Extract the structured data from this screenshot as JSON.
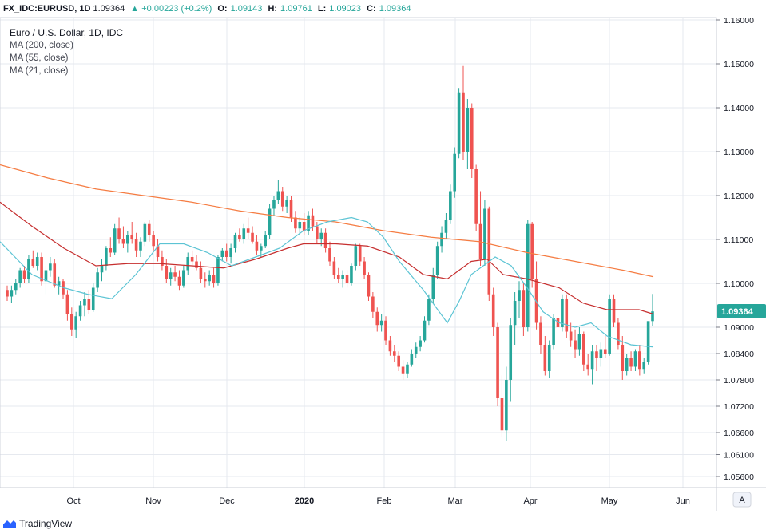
{
  "header": {
    "symbol": "FX_IDC:EURUSD, 1D",
    "last": "1.09364",
    "change": "▲ +0.00223 (+0.2%)",
    "o_label": "O:",
    "o": "1.09143",
    "h_label": "H:",
    "h": "1.09761",
    "l_label": "L:",
    "l": "1.09023",
    "c_label": "C:",
    "c": "1.09364"
  },
  "legend": {
    "title": "Euro / U.S. Dollar, 1D, IDC",
    "ma1": "MA (200, close)",
    "ma2": "MA (55, close)",
    "ma3": "MA (21, close)"
  },
  "price_tag": "1.09364",
  "scale_button": "A",
  "brand": "TradingView",
  "colors": {
    "up": "#26a69a",
    "down": "#ef5350",
    "ma200": "#f57c42",
    "ma55": "#c62f2f",
    "ma21": "#5cc4d4",
    "grid": "#e6e9ef"
  },
  "chart_data": {
    "type": "candlestick",
    "title": "Euro / U.S. Dollar, 1D, IDC",
    "y_ticks": [
      "1.16000",
      "1.15000",
      "1.14000",
      "1.13000",
      "1.12000",
      "1.11000",
      "1.10000",
      "1.09000",
      "1.08400",
      "1.07800",
      "1.07200",
      "1.06600",
      "1.06100",
      "1.05600"
    ],
    "x_ticks": [
      "Oct",
      "Nov",
      "Dec",
      "2020",
      "Feb",
      "Mar",
      "Apr",
      "May",
      "Jun"
    ],
    "last_price": 1.09364,
    "series": [
      {
        "name": "MA (200, close)",
        "points": [
          [
            0,
            1.127
          ],
          [
            60,
            1.124
          ],
          [
            120,
            1.1215
          ],
          [
            180,
            1.12
          ],
          [
            240,
            1.1185
          ],
          [
            300,
            1.1165
          ],
          [
            360,
            1.115
          ],
          [
            420,
            1.114
          ],
          [
            480,
            1.112
          ],
          [
            540,
            1.1105
          ],
          [
            600,
            1.1095
          ],
          [
            660,
            1.107
          ],
          [
            720,
            1.105
          ],
          [
            780,
            1.103
          ],
          [
            818,
            1.1015
          ]
        ]
      },
      {
        "name": "MA (55, close)",
        "points": [
          [
            0,
            1.1185
          ],
          [
            40,
            1.113
          ],
          [
            80,
            1.108
          ],
          [
            120,
            1.104
          ],
          [
            160,
            1.1045
          ],
          [
            200,
            1.1045
          ],
          [
            240,
            1.104
          ],
          [
            280,
            1.1035
          ],
          [
            320,
            1.1055
          ],
          [
            360,
            1.108
          ],
          [
            380,
            1.109
          ],
          [
            420,
            1.109
          ],
          [
            460,
            1.1085
          ],
          [
            500,
            1.106
          ],
          [
            530,
            1.102
          ],
          [
            560,
            1.101
          ],
          [
            590,
            1.105
          ],
          [
            610,
            1.1055
          ],
          [
            630,
            1.102
          ],
          [
            660,
            1.101
          ],
          [
            700,
            1.099
          ],
          [
            730,
            1.0955
          ],
          [
            760,
            1.094
          ],
          [
            800,
            1.094
          ],
          [
            818,
            1.093
          ]
        ]
      },
      {
        "name": "MA (21, close)",
        "points": [
          [
            0,
            1.1095
          ],
          [
            40,
            1.102
          ],
          [
            80,
            1.099
          ],
          [
            110,
            1.0975
          ],
          [
            140,
            1.0965
          ],
          [
            170,
            1.102
          ],
          [
            200,
            1.109
          ],
          [
            230,
            1.109
          ],
          [
            260,
            1.107
          ],
          [
            290,
            1.104
          ],
          [
            320,
            1.106
          ],
          [
            350,
            1.108
          ],
          [
            380,
            1.112
          ],
          [
            410,
            1.114
          ],
          [
            440,
            1.115
          ],
          [
            460,
            1.114
          ],
          [
            480,
            1.1105
          ],
          [
            500,
            1.105
          ],
          [
            530,
            1.0985
          ],
          [
            560,
            1.091
          ],
          [
            575,
            1.096
          ],
          [
            590,
            1.102
          ],
          [
            620,
            1.106
          ],
          [
            640,
            1.104
          ],
          [
            660,
            1.099
          ],
          [
            680,
            1.0935
          ],
          [
            700,
            1.091
          ],
          [
            720,
            1.09
          ],
          [
            740,
            1.091
          ],
          [
            760,
            1.088
          ],
          [
            790,
            1.086
          ],
          [
            818,
            1.0855
          ]
        ]
      }
    ],
    "candles": [
      [
        1.0985,
        1.0995,
        1.096,
        1.097
      ],
      [
        1.097,
        1.0995,
        1.0955,
        1.0985
      ],
      [
        1.0985,
        1.101,
        1.0975,
        1.1
      ],
      [
        1.1,
        1.1035,
        1.099,
        1.103
      ],
      [
        1.103,
        1.104,
        1.1,
        1.101
      ],
      [
        1.101,
        1.1065,
        1.1,
        1.1055
      ],
      [
        1.1055,
        1.1075,
        1.1035,
        1.104
      ],
      [
        1.104,
        1.107,
        1.103,
        1.106
      ],
      [
        1.106,
        1.107,
        1.0995,
        1.1005
      ],
      [
        1.1005,
        1.104,
        1.0975,
        1.103
      ],
      [
        1.103,
        1.106,
        1.1015,
        1.1045
      ],
      [
        1.1045,
        1.1055,
        1.099,
        1.0995
      ],
      [
        1.0995,
        1.1015,
        1.0975,
        1.1005
      ],
      [
        1.1005,
        1.101,
        1.0965,
        1.0975
      ],
      [
        1.0975,
        1.0985,
        1.0915,
        1.093
      ],
      [
        1.093,
        1.0945,
        1.088,
        1.0895
      ],
      [
        1.0895,
        1.0935,
        1.0875,
        1.0925
      ],
      [
        1.0925,
        1.096,
        1.0915,
        1.095
      ],
      [
        1.095,
        1.098,
        1.0925,
        1.0965
      ],
      [
        1.0965,
        1.0985,
        1.093,
        1.094
      ],
      [
        1.094,
        1.1,
        1.0935,
        1.099
      ],
      [
        1.099,
        1.1035,
        1.098,
        1.1025
      ],
      [
        1.1025,
        1.1055,
        1.1005,
        1.104
      ],
      [
        1.104,
        1.1085,
        1.103,
        1.108
      ],
      [
        1.108,
        1.1105,
        1.106,
        1.107
      ],
      [
        1.107,
        1.1135,
        1.1065,
        1.1125
      ],
      [
        1.1125,
        1.115,
        1.109,
        1.11
      ],
      [
        1.11,
        1.113,
        1.108,
        1.109
      ],
      [
        1.109,
        1.112,
        1.107,
        1.111
      ],
      [
        1.111,
        1.114,
        1.109,
        1.11
      ],
      [
        1.11,
        1.1115,
        1.106,
        1.1075
      ],
      [
        1.1075,
        1.1105,
        1.106,
        1.1095
      ],
      [
        1.1095,
        1.114,
        1.1085,
        1.1135
      ],
      [
        1.1135,
        1.1145,
        1.1095,
        1.111
      ],
      [
        1.111,
        1.112,
        1.1075,
        1.1085
      ],
      [
        1.1085,
        1.11,
        1.105,
        1.106
      ],
      [
        1.106,
        1.1075,
        1.103,
        1.104
      ],
      [
        1.104,
        1.1055,
        1.1,
        1.101
      ],
      [
        1.101,
        1.1035,
        1.0995,
        1.1025
      ],
      [
        1.1025,
        1.104,
        1.1005,
        1.1015
      ],
      [
        1.1015,
        1.103,
        1.0985,
        1.0995
      ],
      [
        1.0995,
        1.104,
        1.099,
        1.103
      ],
      [
        1.103,
        1.107,
        1.102,
        1.106
      ],
      [
        1.106,
        1.1075,
        1.104,
        1.105
      ],
      [
        1.105,
        1.1065,
        1.103,
        1.1035
      ],
      [
        1.1035,
        1.105,
        1.1,
        1.101
      ],
      [
        1.101,
        1.1025,
        1.099,
        1.1005
      ],
      [
        1.1005,
        1.103,
        1.0995,
        1.102
      ],
      [
        1.102,
        1.1035,
        1.099,
        1.1
      ],
      [
        1.1,
        1.1065,
        1.0995,
        1.106
      ],
      [
        1.106,
        1.108,
        1.105,
        1.1075
      ],
      [
        1.1075,
        1.109,
        1.105,
        1.106
      ],
      [
        1.106,
        1.109,
        1.1045,
        1.108
      ],
      [
        1.108,
        1.1115,
        1.107,
        1.111
      ],
      [
        1.111,
        1.1125,
        1.1095,
        1.11
      ],
      [
        1.11,
        1.1135,
        1.109,
        1.1125
      ],
      [
        1.1125,
        1.115,
        1.11,
        1.1115
      ],
      [
        1.1115,
        1.113,
        1.109,
        1.1095
      ],
      [
        1.1095,
        1.111,
        1.1065,
        1.1075
      ],
      [
        1.1075,
        1.109,
        1.106,
        1.1085
      ],
      [
        1.1085,
        1.112,
        1.108,
        1.111
      ],
      [
        1.111,
        1.118,
        1.11,
        1.117
      ],
      [
        1.117,
        1.12,
        1.1155,
        1.119
      ],
      [
        1.119,
        1.1235,
        1.118,
        1.121
      ],
      [
        1.121,
        1.122,
        1.1165,
        1.1175
      ],
      [
        1.1175,
        1.12,
        1.116,
        1.119
      ],
      [
        1.119,
        1.12,
        1.114,
        1.115
      ],
      [
        1.115,
        1.1165,
        1.1115,
        1.1125
      ],
      [
        1.1125,
        1.115,
        1.111,
        1.114
      ],
      [
        1.114,
        1.116,
        1.111,
        1.112
      ],
      [
        1.112,
        1.1165,
        1.111,
        1.1155
      ],
      [
        1.1155,
        1.117,
        1.112,
        1.113
      ],
      [
        1.113,
        1.114,
        1.109,
        1.11
      ],
      [
        1.11,
        1.1125,
        1.1085,
        1.1115
      ],
      [
        1.1115,
        1.1125,
        1.107,
        1.108
      ],
      [
        1.108,
        1.1095,
        1.104,
        1.105
      ],
      [
        1.105,
        1.106,
        1.101,
        1.102
      ],
      [
        1.102,
        1.1035,
        1.1,
        1.101
      ],
      [
        1.101,
        1.103,
        1.099,
        1.102
      ],
      [
        1.102,
        1.103,
        1.099,
        1.1
      ],
      [
        1.1,
        1.1045,
        1.0995,
        1.104
      ],
      [
        1.104,
        1.109,
        1.103,
        1.1085
      ],
      [
        1.1085,
        1.109,
        1.104,
        1.105
      ],
      [
        1.105,
        1.106,
        1.101,
        1.102
      ],
      [
        1.102,
        1.1025,
        1.096,
        1.097
      ],
      [
        1.097,
        1.098,
        1.092,
        1.0935
      ],
      [
        1.0935,
        1.0945,
        1.089,
        1.0905
      ],
      [
        1.0905,
        1.093,
        1.089,
        1.0915
      ],
      [
        1.0915,
        1.0925,
        1.086,
        1.087
      ],
      [
        1.087,
        1.088,
        1.0835,
        1.0845
      ],
      [
        1.0845,
        1.086,
        1.082,
        1.0835
      ],
      [
        1.0835,
        1.0845,
        1.08,
        1.081
      ],
      [
        1.081,
        1.0825,
        1.078,
        1.0795
      ],
      [
        1.0795,
        1.082,
        1.0785,
        1.0815
      ],
      [
        1.0815,
        1.085,
        1.081,
        1.084
      ],
      [
        1.084,
        1.0865,
        1.083,
        1.0855
      ],
      [
        1.0855,
        1.088,
        1.0845,
        1.087
      ],
      [
        1.087,
        1.0925,
        1.0865,
        1.0915
      ],
      [
        1.0915,
        1.0975,
        1.0905,
        1.0965
      ],
      [
        1.0965,
        1.1035,
        1.0955,
        1.102
      ],
      [
        1.102,
        1.1095,
        1.101,
        1.1085
      ],
      [
        1.1085,
        1.113,
        1.107,
        1.1115
      ],
      [
        1.1115,
        1.116,
        1.11,
        1.1145
      ],
      [
        1.1145,
        1.1225,
        1.1135,
        1.121
      ],
      [
        1.121,
        1.131,
        1.1195,
        1.1295
      ],
      [
        1.1295,
        1.1445,
        1.1285,
        1.1435
      ],
      [
        1.1435,
        1.1495,
        1.128,
        1.13
      ],
      [
        1.13,
        1.142,
        1.126,
        1.14
      ],
      [
        1.14,
        1.141,
        1.124,
        1.126
      ],
      [
        1.126,
        1.127,
        1.112,
        1.1135
      ],
      [
        1.1135,
        1.121,
        1.104,
        1.1055
      ],
      [
        1.1055,
        1.119,
        1.104,
        1.117
      ],
      [
        1.117,
        1.1175,
        1.096,
        1.0975
      ],
      [
        1.0975,
        1.099,
        1.088,
        1.09
      ],
      [
        1.09,
        1.091,
        1.072,
        1.074
      ],
      [
        1.074,
        1.079,
        1.065,
        1.0665
      ],
      [
        1.0665,
        1.081,
        1.064,
        1.078
      ],
      [
        1.078,
        1.092,
        1.073,
        1.0905
      ],
      [
        1.0905,
        1.098,
        1.086,
        1.096
      ],
      [
        1.096,
        1.1005,
        1.092,
        1.0985
      ],
      [
        1.0985,
        1.1,
        1.088,
        1.09
      ],
      [
        1.09,
        1.1145,
        1.089,
        1.1135
      ],
      [
        1.1135,
        1.114,
        1.099,
        1.101
      ],
      [
        1.101,
        1.105,
        1.0895,
        1.091
      ],
      [
        1.091,
        1.0925,
        1.084,
        1.086
      ],
      [
        1.086,
        1.088,
        1.079,
        1.08
      ],
      [
        1.08,
        1.087,
        1.0785,
        1.086
      ],
      [
        1.086,
        1.093,
        1.085,
        1.092
      ],
      [
        1.092,
        1.0945,
        1.0885,
        1.09
      ],
      [
        1.09,
        1.0975,
        1.089,
        1.0965
      ],
      [
        1.0965,
        1.0975,
        1.0875,
        1.089
      ],
      [
        1.089,
        1.091,
        1.0855,
        1.087
      ],
      [
        1.087,
        1.0895,
        1.083,
        1.085
      ],
      [
        1.085,
        1.09,
        1.0835,
        1.0885
      ],
      [
        1.0885,
        1.089,
        1.08,
        1.0815
      ],
      [
        1.0815,
        1.084,
        1.079,
        1.0805
      ],
      [
        1.0805,
        1.086,
        1.077,
        1.0845
      ],
      [
        1.0845,
        1.086,
        1.08,
        1.083
      ],
      [
        1.083,
        1.0865,
        1.081,
        1.085
      ],
      [
        1.085,
        1.088,
        1.083,
        1.084
      ],
      [
        1.084,
        1.0975,
        1.0835,
        1.0965
      ],
      [
        1.0965,
        1.0975,
        1.09,
        1.091
      ],
      [
        1.091,
        1.092,
        1.085,
        1.086
      ],
      [
        1.086,
        1.088,
        1.078,
        1.08
      ],
      [
        1.08,
        1.084,
        1.079,
        1.083
      ],
      [
        1.083,
        1.0845,
        1.08,
        1.081
      ],
      [
        1.081,
        1.085,
        1.08,
        1.0845
      ],
      [
        1.0845,
        1.086,
        1.079,
        1.0805
      ],
      [
        1.0805,
        1.083,
        1.0795,
        1.082
      ],
      [
        1.082,
        1.091,
        1.0815,
        1.0914
      ],
      [
        1.0914,
        1.0976,
        1.0902,
        1.0936
      ]
    ]
  }
}
